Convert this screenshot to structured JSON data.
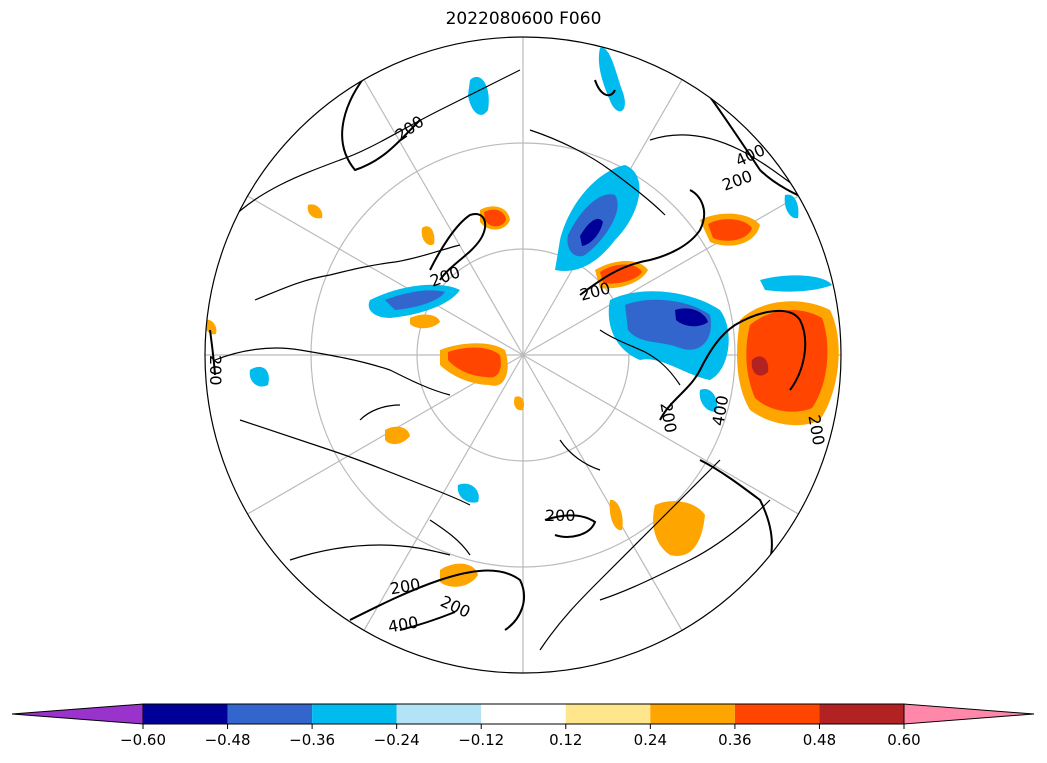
{
  "title": "2022080600 F060",
  "map": {
    "projection": "north-polar-stereographic",
    "coastline_color": "#000000",
    "graticule_color": "#bbbbbb",
    "contour_color": "#000000",
    "contour_labels": [
      "200",
      "200",
      "200",
      "200",
      "200",
      "200",
      "200",
      "200",
      "200",
      "200",
      "400",
      "400",
      "400"
    ]
  },
  "colorbar": {
    "extend": "both",
    "ticks": [
      "−0.60",
      "−0.48",
      "−0.36",
      "−0.24",
      "−0.12",
      "0.12",
      "0.24",
      "0.36",
      "0.48",
      "0.60"
    ],
    "colors": [
      "#9933cc",
      "#000099",
      "#3366cc",
      "#00bbee",
      "#b3e3f7",
      "#ffffff",
      "#ffe68c",
      "#ffa500",
      "#ff4500",
      "#b22222",
      "#ff88aa"
    ]
  }
}
